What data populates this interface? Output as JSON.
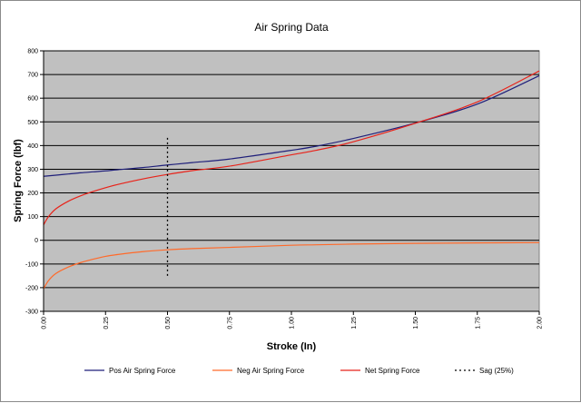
{
  "chart_data": {
    "type": "line",
    "title": "Air Spring Data",
    "xlabel": "Stroke (In)",
    "ylabel": "Spring Force (lbf)",
    "xlim": [
      0,
      2
    ],
    "ylim": [
      -300,
      800
    ],
    "xticks": [
      0,
      0.25,
      0.5,
      0.75,
      1,
      1.25,
      1.5,
      1.75,
      2
    ],
    "xtick_labels": [
      "0.00",
      "0.25",
      "0.50",
      "0.75",
      "1.00",
      "1.25",
      "1.50",
      "1.75",
      "2.00"
    ],
    "yticks": [
      -300,
      -200,
      -100,
      0,
      100,
      200,
      300,
      400,
      500,
      600,
      700,
      800
    ],
    "ytick_labels": [
      "-300",
      "-200",
      "-100",
      "0",
      "100",
      "200",
      "300",
      "400",
      "500",
      "600",
      "700",
      "800"
    ],
    "grid": "horizontal",
    "plot_background": "#c0c0c0",
    "legend_position": "bottom",
    "x": [
      0,
      0.02,
      0.05,
      0.1,
      0.15,
      0.2,
      0.25,
      0.3,
      0.4,
      0.5,
      0.6,
      0.75,
      1.0,
      1.1,
      1.25,
      1.5,
      1.75,
      2.0
    ],
    "series": [
      {
        "name": "Pos Air Spring Force",
        "color": "#1f1f7a",
        "dash": "solid",
        "values": [
          270,
          272,
          275,
          280,
          285,
          289,
          293,
          298,
          307,
          318,
          328,
          343,
          380,
          397,
          430,
          495,
          575,
          695
        ]
      },
      {
        "name": "Neg Air Spring Force",
        "color": "#ff6a2a",
        "dash": "solid",
        "values": [
          -205,
          -170,
          -140,
          -113,
          -94,
          -80,
          -68,
          -60,
          -48,
          -40,
          -35,
          -30,
          -21,
          -19,
          -16,
          -13,
          -11,
          -10
        ]
      },
      {
        "name": "Net Spring Force",
        "color": "#e8231a",
        "dash": "solid",
        "values": [
          65,
          100,
          133,
          165,
          188,
          206,
          222,
          236,
          259,
          278,
          294,
          313,
          361,
          380,
          416,
          494,
          584,
          715
        ]
      },
      {
        "name": "Sag (25%)",
        "color": "#000000",
        "dash": "dotted",
        "x": [
          0.5,
          0.5
        ],
        "values": [
          -150,
          435
        ]
      }
    ]
  }
}
